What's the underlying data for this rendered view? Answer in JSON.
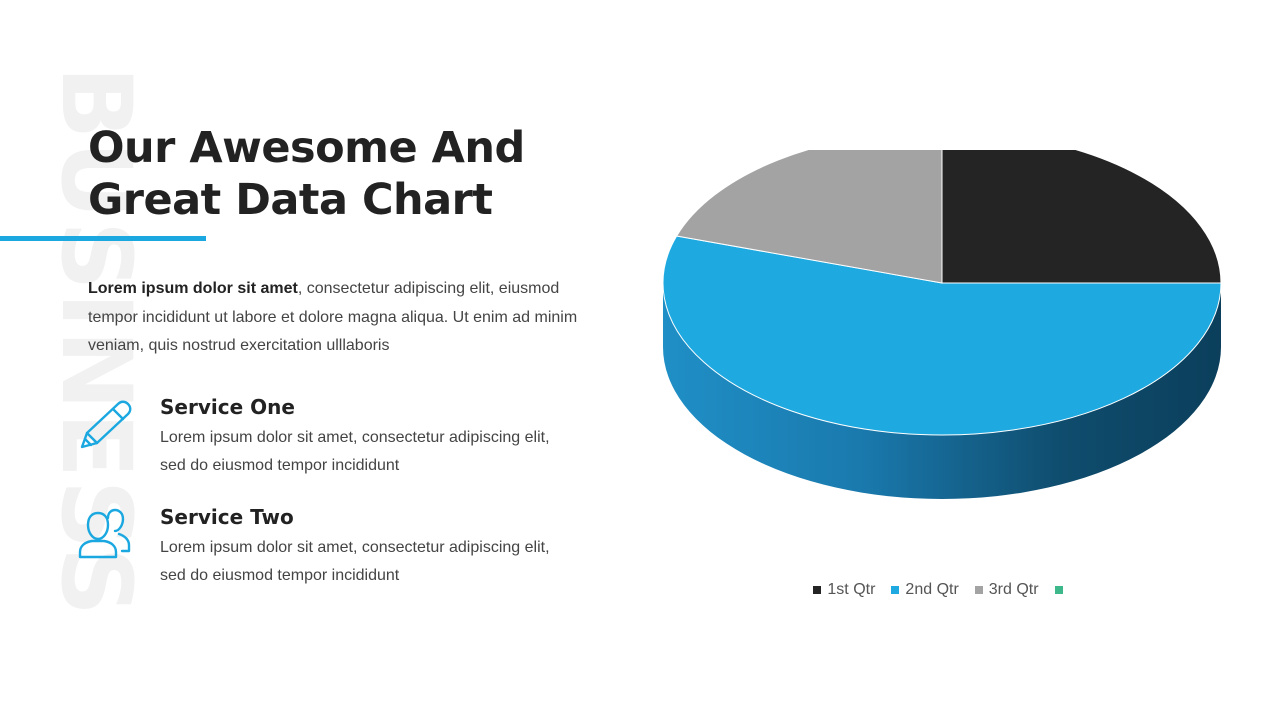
{
  "slide": {
    "watermark": "BUSINESS",
    "title_line1": "Our Awesome And",
    "title_line2": "Great Data Chart",
    "intro_bold": "Lorem ipsum dolor sit amet",
    "intro_rest": ", consectetur adipiscing elit, eiusmod tempor incididunt ut labore et dolore magna aliqua. Ut enim ad minim veniam, quis nostrud exercitation ulllaboris",
    "accent_color": "#1ba8e0",
    "services": [
      {
        "title": "Service One",
        "text": "Lorem ipsum dolor sit amet, consectetur adipiscing elit, sed do eiusmod tempor incididunt",
        "icon": "pencil-icon"
      },
      {
        "title": "Service Two",
        "text": "Lorem ipsum dolor sit amet, consectetur adipiscing elit, sed do eiusmod tempor incididunt",
        "icon": "users-icon"
      }
    ]
  },
  "chart_data": {
    "type": "pie",
    "style": "3d",
    "categories": [
      "1st Qtr",
      "2nd Qtr",
      "3rd Qtr",
      ""
    ],
    "values": [
      25,
      55,
      20,
      0
    ],
    "colors": [
      "#242424",
      "#1eaae1",
      "#a3a3a3",
      "#3cb88a"
    ],
    "legend_position": "bottom"
  }
}
